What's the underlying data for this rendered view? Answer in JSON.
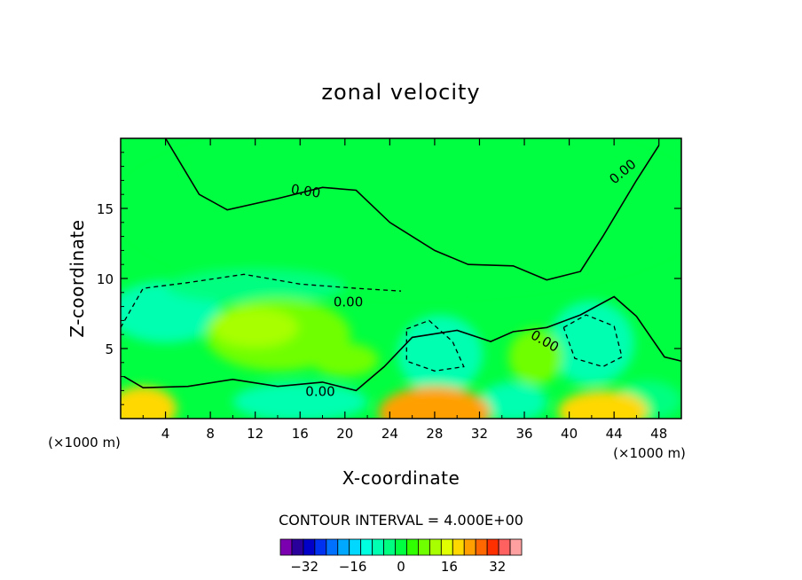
{
  "chart_data": {
    "type": "heatmap",
    "title": "zonal velocity",
    "xlabel": "X-coordinate",
    "ylabel": "Z-coordinate",
    "x_unit_label": "(×1000 m)",
    "x_unit_label_right": "(×1000 m)",
    "xlim": [
      0,
      50
    ],
    "ylim": [
      0,
      20
    ],
    "x_ticks": [
      "4",
      "8",
      "12",
      "16",
      "20",
      "24",
      "28",
      "32",
      "36",
      "40",
      "44",
      "48"
    ],
    "y_ticks": [
      "5",
      "10",
      "15"
    ],
    "contour_interval_text": "CONTOUR INTERVAL = 4.000E+00",
    "contour_label": "0.00",
    "colorbar": {
      "tick_labels": [
        "−32",
        "−16",
        "0",
        "16",
        "32"
      ],
      "tick_values": [
        -32,
        -16,
        0,
        16,
        32
      ],
      "levels": [
        -40,
        -36,
        -32,
        -28,
        -24,
        -20,
        -16,
        -12,
        -8,
        -4,
        0,
        4,
        8,
        12,
        16,
        20,
        24,
        28,
        32,
        36,
        40
      ],
      "colors": [
        "#7a00b0",
        "#2a009a",
        "#0000c8",
        "#0030f0",
        "#0070ff",
        "#00a8ff",
        "#00d8ff",
        "#00ffe0",
        "#00ffb0",
        "#00ff80",
        "#00ff40",
        "#30ff00",
        "#70ff00",
        "#a8ff00",
        "#e0ff00",
        "#ffd800",
        "#ffa000",
        "#ff6800",
        "#ff3000",
        "#ff6060",
        "#ffa0a0"
      ]
    },
    "field_regions": [
      {
        "cx": 26,
        "cy": 15,
        "rx": 26,
        "ry": 6,
        "value": -2
      },
      {
        "cx": 4,
        "cy": 7.6,
        "rx": 5,
        "ry": 2.2,
        "value": -8
      },
      {
        "cx": 12,
        "cy": 9.4,
        "rx": 8,
        "ry": 1.2,
        "value": -5
      },
      {
        "cx": 14,
        "cy": 6,
        "rx": 6.5,
        "ry": 2.6,
        "value": 6
      },
      {
        "cx": 12,
        "cy": 6.5,
        "rx": 3.8,
        "ry": 1.4,
        "value": 12
      },
      {
        "cx": 20,
        "cy": 4.2,
        "rx": 3,
        "ry": 1.2,
        "value": 6
      },
      {
        "cx": 28.5,
        "cy": 4.6,
        "rx": 3.8,
        "ry": 2.8,
        "value": -8
      },
      {
        "cx": 42,
        "cy": 5.4,
        "rx": 3.8,
        "ry": 3,
        "value": -8
      },
      {
        "cx": 37,
        "cy": 4.4,
        "rx": 2.4,
        "ry": 2,
        "value": 6
      },
      {
        "cx": 16,
        "cy": 1.2,
        "rx": 6,
        "ry": 1.4,
        "value": -10
      },
      {
        "cx": 35,
        "cy": 1.2,
        "rx": 3,
        "ry": 1.4,
        "value": -8
      },
      {
        "cx": 47,
        "cy": 1.3,
        "rx": 3,
        "ry": 1.4,
        "value": -6
      },
      {
        "cx": 2,
        "cy": 0.7,
        "rx": 3,
        "ry": 1.6,
        "value": 18
      },
      {
        "cx": 28,
        "cy": 0.4,
        "rx": 5,
        "ry": 1.9,
        "value": 22
      },
      {
        "cx": 43,
        "cy": 0.5,
        "rx": 4,
        "ry": 1.5,
        "value": 18
      }
    ],
    "zero_contour_upper": [
      [
        4,
        20
      ],
      [
        7,
        16
      ],
      [
        9.5,
        14.9
      ],
      [
        14,
        15.7
      ],
      [
        18,
        16.5
      ],
      [
        21,
        16.3
      ],
      [
        24,
        14
      ],
      [
        28,
        12
      ],
      [
        31,
        11
      ],
      [
        35,
        10.9
      ],
      [
        38,
        9.9
      ],
      [
        41,
        10.5
      ],
      [
        43,
        13
      ],
      [
        46,
        17
      ],
      [
        48,
        19.5
      ]
    ],
    "zero_contour_lower": [
      [
        0.3,
        3
      ],
      [
        2,
        2.2
      ],
      [
        6,
        2.3
      ],
      [
        10,
        2.8
      ],
      [
        14,
        2.3
      ],
      [
        18,
        2.6
      ],
      [
        21,
        2
      ],
      [
        23.5,
        3.7
      ],
      [
        26,
        5.8
      ],
      [
        30,
        6.3
      ],
      [
        33,
        5.5
      ],
      [
        35,
        6.2
      ],
      [
        38,
        6.5
      ],
      [
        41,
        7.4
      ],
      [
        44,
        8.7
      ],
      [
        46,
        7.3
      ],
      [
        48.5,
        4.4
      ],
      [
        50,
        4.1
      ]
    ],
    "dashed_contours": [
      [
        [
          0,
          6.5
        ],
        [
          2,
          9.3
        ],
        [
          6,
          9.7
        ],
        [
          11,
          10.3
        ],
        [
          16,
          9.6
        ],
        [
          21,
          9.3
        ],
        [
          25,
          9.1
        ]
      ],
      [
        [
          25.5,
          6.4
        ],
        [
          27.5,
          7
        ],
        [
          29.6,
          5.5
        ],
        [
          30.6,
          3.7
        ],
        [
          28,
          3.4
        ],
        [
          25.5,
          4.1
        ],
        [
          25.5,
          6.4
        ]
      ],
      [
        [
          39.5,
          6.5
        ],
        [
          41.5,
          7.4
        ],
        [
          44,
          6.6
        ],
        [
          44.7,
          4.4
        ],
        [
          43,
          3.7
        ],
        [
          40.5,
          4.3
        ],
        [
          39.5,
          6.5
        ]
      ]
    ]
  }
}
